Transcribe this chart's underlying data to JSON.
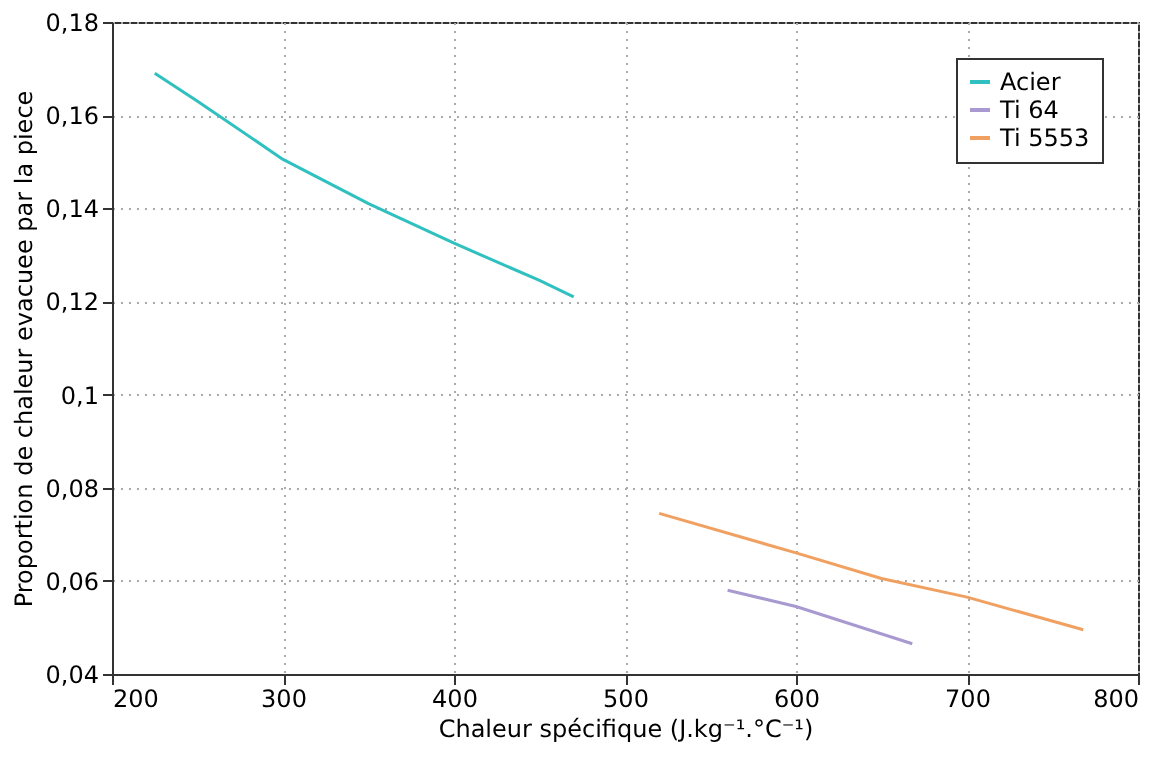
{
  "chart_data": {
    "type": "line",
    "xlabel": "Chaleur spécifique (J.kg⁻¹.°C⁻¹)",
    "ylabel": "Proportion de chaleur evacuee par la piece",
    "xlim": [
      200,
      800
    ],
    "xticks": [
      200,
      300,
      400,
      500,
      600,
      700,
      800
    ],
    "ylim": [
      0.04,
      0.18
    ],
    "yticks": [
      {
        "value": 0.04,
        "label": "0,04"
      },
      {
        "value": 0.06,
        "label": "0,06"
      },
      {
        "value": 0.08,
        "label": "0,08"
      },
      {
        "value": 0.1,
        "label": "0,1"
      },
      {
        "value": 0.12,
        "label": "0,12"
      },
      {
        "value": 0.14,
        "label": "0,14"
      },
      {
        "value": 0.16,
        "label": "0,16"
      },
      {
        "value": 0.18,
        "label": "0,18"
      }
    ],
    "grid": true,
    "legend": "top right",
    "marker": "none",
    "line_style": "solid",
    "series": [
      {
        "name": "Acier",
        "color": "#30c0c0",
        "x": [
          225,
          250,
          300,
          350,
          400,
          450,
          470
        ],
        "values": [
          0.169,
          0.163,
          0.1505,
          0.141,
          0.1325,
          0.1245,
          0.121
        ]
      },
      {
        "name": "Ti 64",
        "color": "#a89ad0",
        "x": [
          560,
          600,
          668
        ],
        "values": [
          0.058,
          0.0545,
          0.0465
        ]
      },
      {
        "name": "Ti 5553",
        "color": "#f0a060",
        "x": [
          520,
          600,
          650,
          700,
          768
        ],
        "values": [
          0.0745,
          0.066,
          0.0605,
          0.0565,
          0.0495
        ]
      }
    ]
  }
}
